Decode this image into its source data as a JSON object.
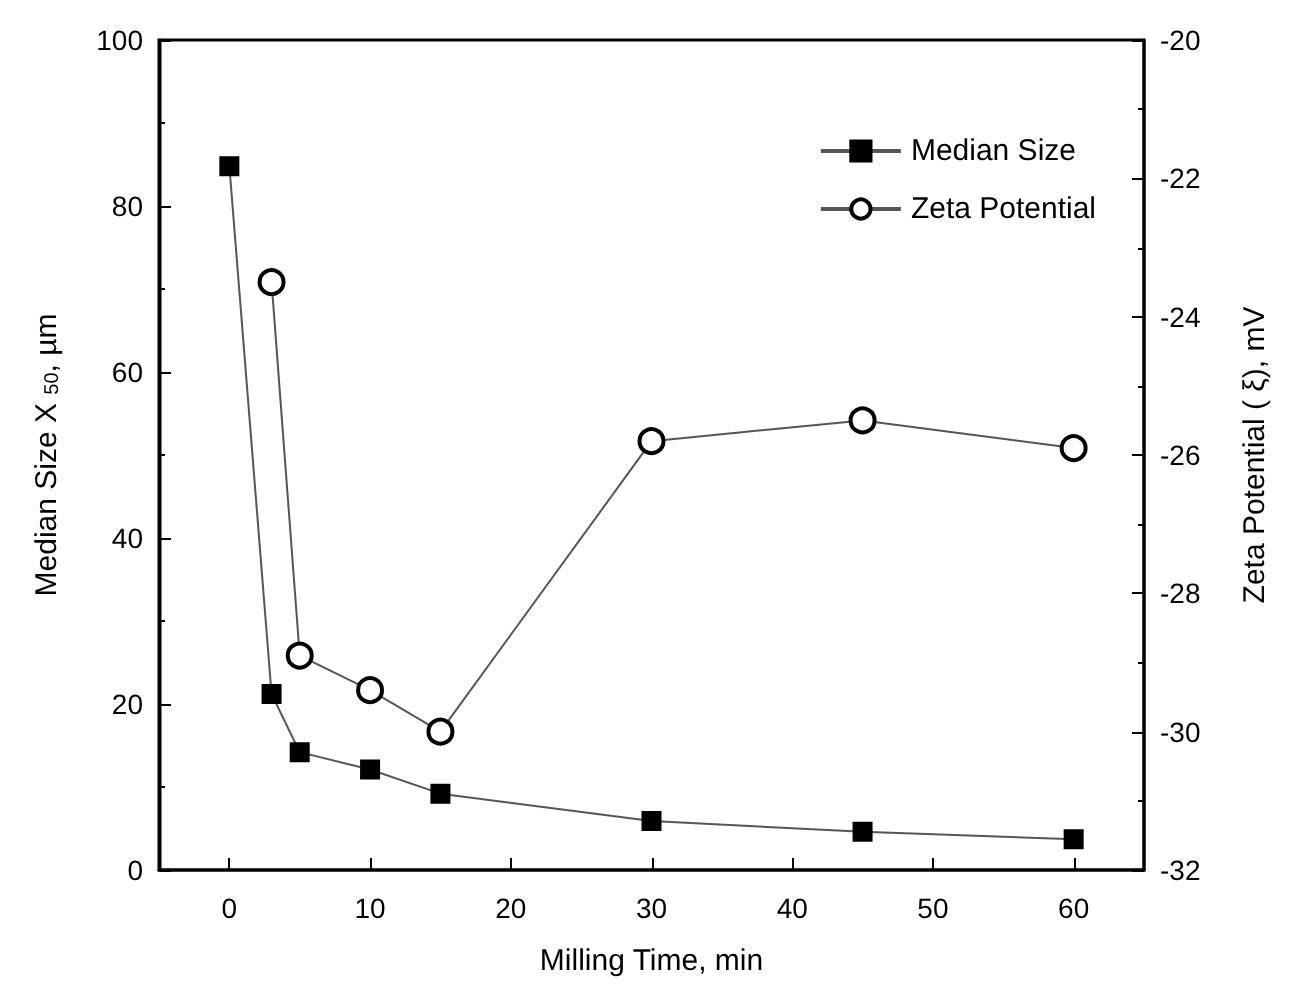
{
  "chart_data": {
    "type": "line",
    "xlabel": "Milling Time, min",
    "ylabel": "Median Size X $_{50}$, µm",
    "y2label": "Zeta Potential ( ξ), mV",
    "x": [
      0,
      3,
      5,
      10,
      15,
      30,
      45,
      60
    ],
    "series": [
      {
        "name": "Median Size",
        "color": "#000000",
        "marker": "square",
        "values": [
          84.8,
          21.2,
          14.2,
          12.1,
          9.2,
          5.9,
          4.6,
          3.7
        ]
      },
      {
        "name": "Zeta Potential",
        "color": "#000000",
        "marker": "circle",
        "axis": "y2",
        "x": [
          3,
          5,
          10,
          15,
          30,
          45,
          60
        ],
        "values": [
          -23.5,
          -28.9,
          -29.4,
          -30.0,
          -25.8,
          -25.5,
          -25.9
        ]
      }
    ],
    "xlim": [
      -5,
      65
    ],
    "xticks": [
      0,
      10,
      20,
      30,
      40,
      50,
      60
    ],
    "ylim": [
      0,
      100
    ],
    "yticks": [
      0,
      20,
      40,
      60,
      80,
      100
    ],
    "y2lim": [
      -32,
      -20
    ],
    "y2ticks": [
      -32,
      -30,
      -28,
      -26,
      -24,
      -22,
      -20
    ],
    "legend": "top right",
    "line_style": "solid"
  }
}
